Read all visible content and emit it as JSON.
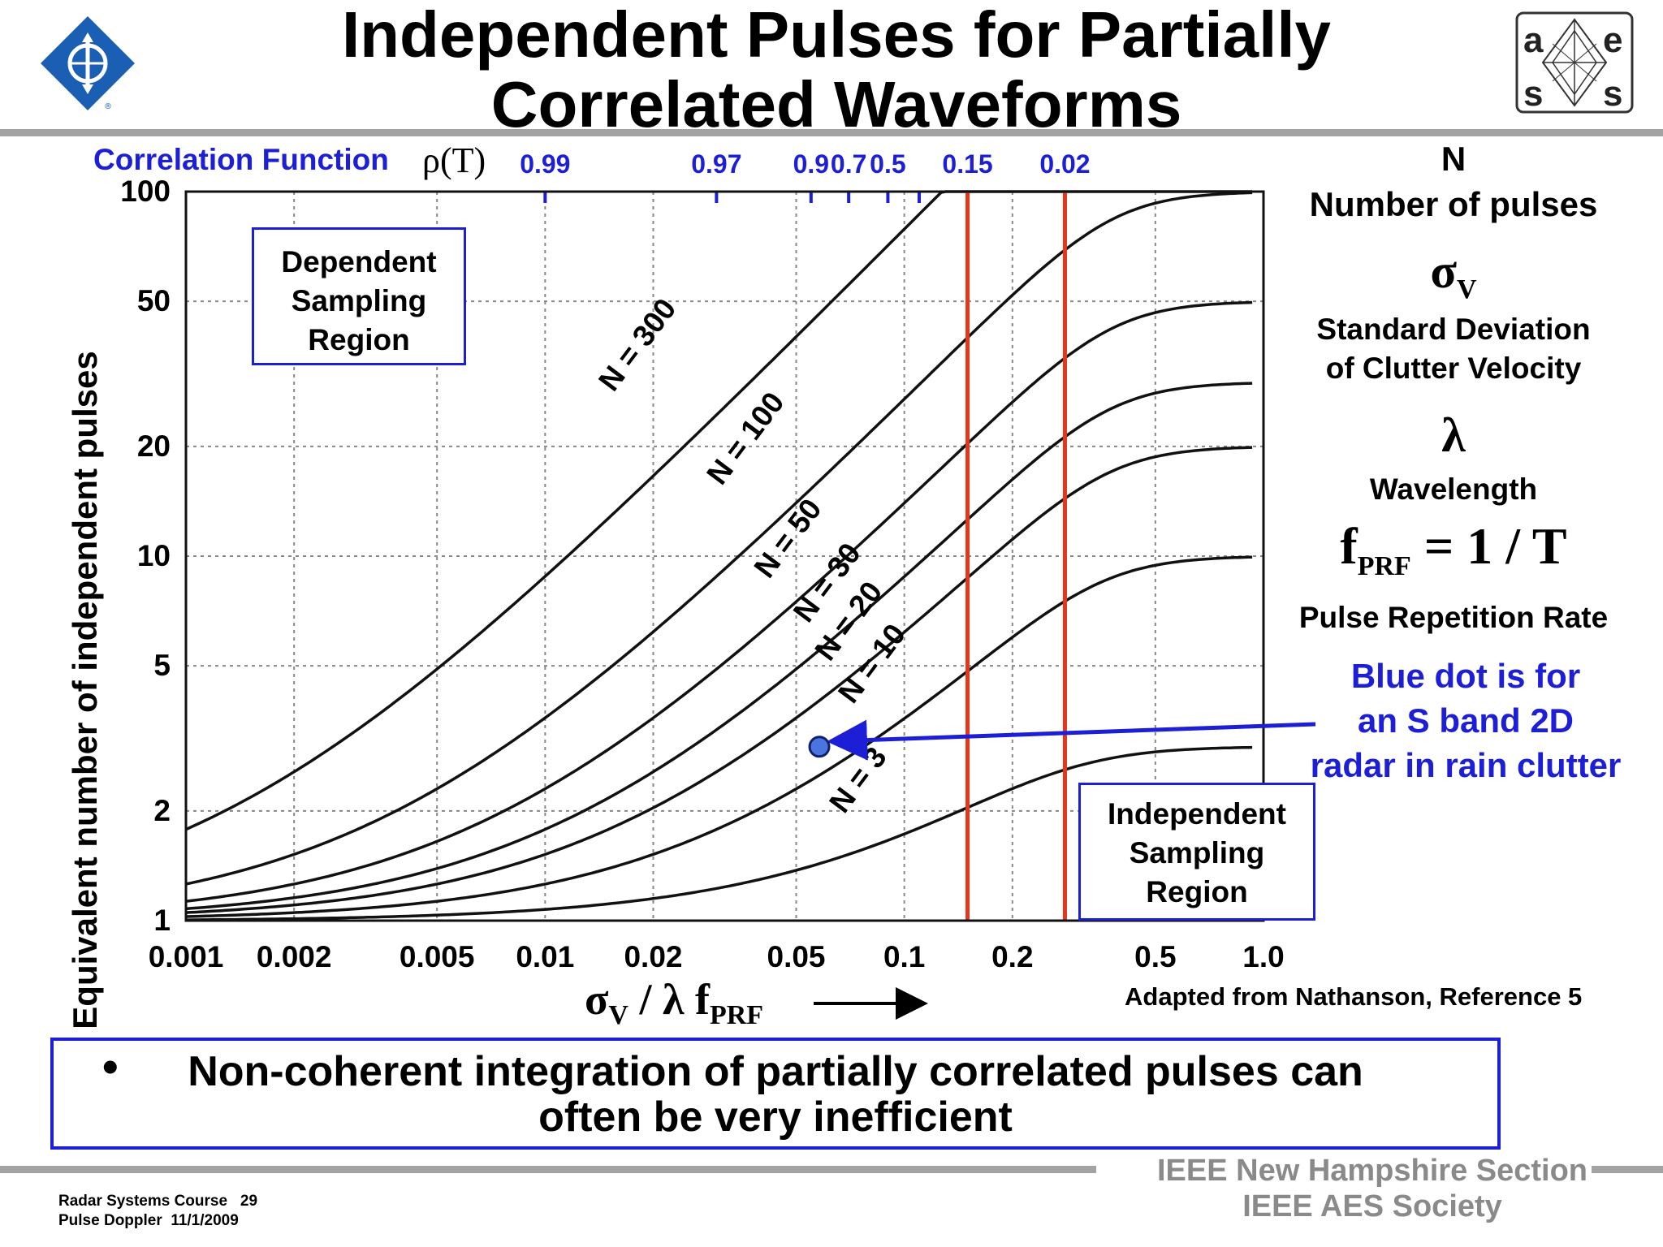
{
  "title_line1": "Independent Pulses for Partially",
  "title_line2": "Correlated Waveforms",
  "logos": {
    "left": "ieee-logo",
    "right": "aess-logo"
  },
  "colors": {
    "accent_blue": "#1d1fd6",
    "red_line": "#e2371f",
    "curve": "#111111",
    "rule_gray": "#a3a3a3"
  },
  "correlation": {
    "label": "Correlation Function",
    "symbol": "ρ(T)",
    "ticks": [
      {
        "label": "0.99",
        "x": 0.01
      },
      {
        "label": "0.97",
        "x": 0.03
      },
      {
        "label": "0.9",
        "x": 0.055
      },
      {
        "label": "0.7",
        "x": 0.07
      },
      {
        "label": "0.5",
        "x": 0.09
      },
      {
        "label": "0.15",
        "x": 0.15
      },
      {
        "label": "0.02",
        "x": 0.28
      }
    ],
    "marker_x": [
      0.01,
      0.03,
      0.055,
      0.07,
      0.09,
      0.11,
      0.15,
      0.28
    ]
  },
  "regions": {
    "dependent": [
      "Dependent",
      "Sampling",
      "Region"
    ],
    "independent": [
      "Independent",
      "Sampling",
      "Region"
    ]
  },
  "legend": {
    "n_symbol": "N",
    "n_desc": "Number of pulses",
    "sigma_symbol": "σ",
    "sigma_sub": "V",
    "sigma_desc_1": "Standard Deviation",
    "sigma_desc_2": "of Clutter Velocity",
    "lambda_symbol": "λ",
    "lambda_desc": "Wavelength",
    "prf_symbol": "f",
    "prf_sub": "PRF",
    "prf_eq": " = 1 / T",
    "prf_desc": "Pulse Repetition Rate"
  },
  "blue_note": [
    "Blue dot is for",
    "an S band 2D",
    "radar in rain clutter"
  ],
  "adapted_note": "Adapted from Nathanson, Reference 5",
  "bullet": {
    "symbol": "•",
    "line1": "Non-coherent integration of partially correlated pulses can",
    "line2": "often be very inefficient"
  },
  "footer": {
    "course": "Radar Systems Course",
    "page": "29",
    "topic": "Pulse Doppler",
    "date": "11/1/2009",
    "org1": "IEEE New Hampshire Section",
    "org2": "IEEE AES Society"
  },
  "chart_data": {
    "type": "line",
    "scale": "log-log",
    "xlabel": {
      "sym": "σ",
      "sub1": "V",
      "mid": " / λ f",
      "sub2": "PRF"
    },
    "ylabel": "Equivalent number of independent pulses",
    "xlim": [
      0.001,
      1.0
    ],
    "ylim": [
      1,
      100
    ],
    "x_ticks": [
      {
        "v": 0.001,
        "label": "0.001"
      },
      {
        "v": 0.002,
        "label": "0.002"
      },
      {
        "v": 0.005,
        "label": "0.005"
      },
      {
        "v": 0.01,
        "label": "0.01"
      },
      {
        "v": 0.02,
        "label": "0.02"
      },
      {
        "v": 0.05,
        "label": "0.05"
      },
      {
        "v": 0.1,
        "label": "0.1"
      },
      {
        "v": 0.2,
        "label": "0.2"
      },
      {
        "v": 0.5,
        "label": "0.5"
      },
      {
        "v": 1.0,
        "label": "1.0"
      }
    ],
    "y_ticks": [
      {
        "v": 1,
        "label": "1"
      },
      {
        "v": 2,
        "label": "2"
      },
      {
        "v": 5,
        "label": "5"
      },
      {
        "v": 10,
        "label": "10"
      },
      {
        "v": 20,
        "label": "20"
      },
      {
        "v": 50,
        "label": "50"
      },
      {
        "v": 100,
        "label": "100"
      }
    ],
    "grid": true,
    "series": [
      {
        "name": "N = 300",
        "n": 300,
        "label_x": 0.0155,
        "label_y": 28
      },
      {
        "name": "N = 100",
        "n": 100,
        "label_x": 0.031,
        "label_y": 15.5
      },
      {
        "name": "N = 50",
        "n": 50,
        "label_x": 0.042,
        "label_y": 8.6
      },
      {
        "name": "N = 30",
        "n": 30,
        "label_x": 0.054,
        "label_y": 6.5
      },
      {
        "name": "N = 20",
        "n": 20,
        "label_x": 0.062,
        "label_y": 5.1
      },
      {
        "name": "N = 10",
        "n": 10,
        "label_x": 0.072,
        "label_y": 3.9
      },
      {
        "name": "N = 3",
        "n": 3,
        "label_x": 0.068,
        "label_y": 1.95
      }
    ],
    "vertical_lines": [
      0.15,
      0.28
    ],
    "point": {
      "x": 0.058,
      "y": 3.0
    },
    "scale_factor": 3.5
  }
}
